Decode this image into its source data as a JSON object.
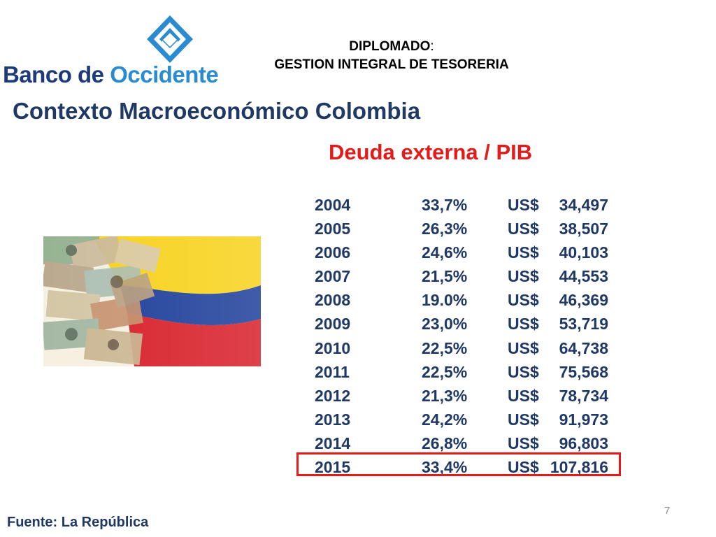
{
  "logo": {
    "word1": "Banco de",
    "word2": "Occidente"
  },
  "header": {
    "line1": "DIPLOMADO",
    "line1_suffix": ":",
    "line2": "GESTION INTEGRAL DE TESORERIA"
  },
  "main_title": "Contexto Macroeconómico Colombia",
  "subtitle": "Deuda externa / PIB",
  "table": {
    "rows": [
      {
        "year": "2004",
        "pct": "33,7%",
        "currency": "US$",
        "amount": "34,497"
      },
      {
        "year": "2005",
        "pct": "26,3%",
        "currency": "US$",
        "amount": "38,507"
      },
      {
        "year": "2006",
        "pct": "24,6%",
        "currency": "US$",
        "amount": "40,103"
      },
      {
        "year": "2007",
        "pct": "21,5%",
        "currency": "US$",
        "amount": "44,553"
      },
      {
        "year": "2008",
        "pct": "19.0%",
        "currency": "US$",
        "amount": "46,369"
      },
      {
        "year": "2009",
        "pct": "23,0%",
        "currency": "US$",
        "amount": "53,719"
      },
      {
        "year": "2010",
        "pct": "22,5%",
        "currency": "US$",
        "amount": "64,738"
      },
      {
        "year": "2011",
        "pct": "22,5%",
        "currency": "US$",
        "amount": "75,568"
      },
      {
        "year": "2012",
        "pct": "21,3%",
        "currency": "US$",
        "amount": "78,734"
      },
      {
        "year": "2013",
        "pct": "24,2%",
        "currency": "US$",
        "amount": "91,973"
      },
      {
        "year": "2014",
        "pct": "26,8%",
        "currency": "US$",
        "amount": "96,803"
      },
      {
        "year": "2015",
        "pct": "33,4%",
        "currency": "US$",
        "amount": "107,816"
      }
    ],
    "highlighted_year": "2015"
  },
  "page_number": "7",
  "source": "Fuente: La República",
  "colors": {
    "title": "#1f3864",
    "accent_red": "#e31b1b",
    "logo_dark": "#1d3b7a",
    "logo_light": "#2a8bd0"
  },
  "image": {
    "description_icon": "money-flag-image"
  }
}
